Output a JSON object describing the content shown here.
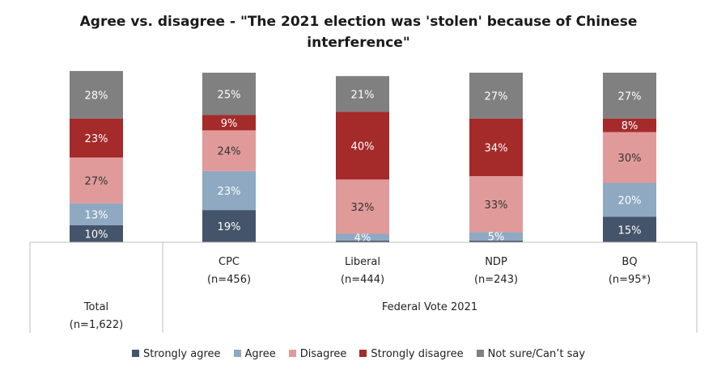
{
  "title_line1": "Agree vs. disagree - \"The 2021 election was 'stolen' because of Chinese",
  "title_line2": "interference\"",
  "chart_data": {
    "type": "bar",
    "stacked": true,
    "percent": true,
    "categories": [
      {
        "name": "Total",
        "n": "(n=1,622)"
      },
      {
        "name": "CPC",
        "n": "(n=456)"
      },
      {
        "name": "Liberal",
        "n": "(n=444)"
      },
      {
        "name": "NDP",
        "n": "(n=243)"
      },
      {
        "name": "BQ",
        "n": "(n=95*)"
      }
    ],
    "group_label": "Federal Vote 2021",
    "series": [
      {
        "name": "Strongly agree",
        "color": "#44546a",
        "label_color": "#ffffff",
        "values": [
          10,
          19,
          1,
          1,
          15
        ],
        "labels": [
          "10%",
          "19%",
          "",
          "",
          "15%"
        ]
      },
      {
        "name": "Agree",
        "color": "#8ea9c1",
        "label_color": "#ffffff",
        "values": [
          13,
          23,
          4,
          5,
          20
        ],
        "labels": [
          "13%",
          "23%",
          "4%",
          "5%",
          "20%"
        ]
      },
      {
        "name": "Disagree",
        "color": "#e19a9a",
        "label_color": "#333333",
        "values": [
          27,
          24,
          32,
          33,
          30
        ],
        "labels": [
          "27%",
          "24%",
          "32%",
          "33%",
          "30%"
        ]
      },
      {
        "name": "Strongly disagree",
        "color": "#a52a2a",
        "label_color": "#ffffff",
        "values": [
          23,
          9,
          40,
          34,
          8
        ],
        "labels": [
          "23%",
          "9%",
          "40%",
          "34%",
          "8%"
        ]
      },
      {
        "name": "Not sure/Can’t say",
        "color": "#808080",
        "label_color": "#ffffff",
        "values": [
          28,
          25,
          21,
          27,
          27
        ],
        "labels": [
          "28%",
          "25%",
          "21%",
          "27%",
          "27%"
        ]
      }
    ]
  }
}
